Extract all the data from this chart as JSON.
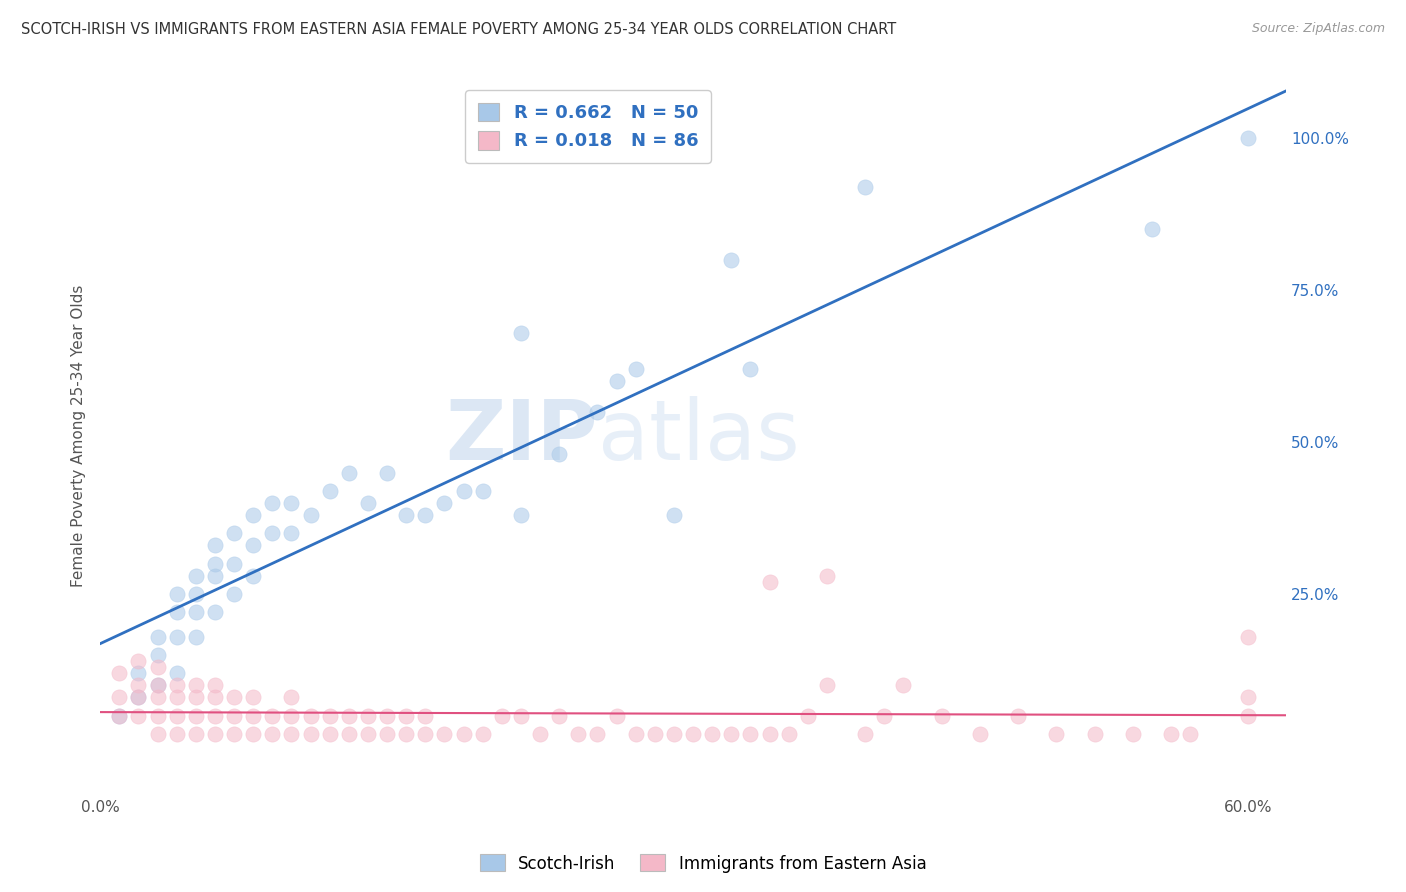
{
  "title": "SCOTCH-IRISH VS IMMIGRANTS FROM EASTERN ASIA FEMALE POVERTY AMONG 25-34 YEAR OLDS CORRELATION CHART",
  "source": "Source: ZipAtlas.com",
  "ylabel": "Female Poverty Among 25-34 Year Olds",
  "xlim": [
    0.0,
    0.62
  ],
  "ylim": [
    -0.08,
    1.1
  ],
  "blue_R": 0.662,
  "blue_N": 50,
  "pink_R": 0.018,
  "pink_N": 86,
  "blue_color": "#a8c8e8",
  "pink_color": "#f4b8c8",
  "blue_line_color": "#3070c0",
  "pink_line_color": "#e05080",
  "watermark_zip": "ZIP",
  "watermark_atlas": "atlas",
  "blue_scatter_x": [
    0.01,
    0.02,
    0.02,
    0.03,
    0.03,
    0.03,
    0.04,
    0.04,
    0.04,
    0.04,
    0.05,
    0.05,
    0.05,
    0.05,
    0.06,
    0.06,
    0.06,
    0.06,
    0.07,
    0.07,
    0.07,
    0.08,
    0.08,
    0.08,
    0.09,
    0.09,
    0.1,
    0.1,
    0.11,
    0.12,
    0.13,
    0.14,
    0.15,
    0.16,
    0.17,
    0.18,
    0.19,
    0.2,
    0.22,
    0.24,
    0.26,
    0.27,
    0.3,
    0.33,
    0.34,
    0.4,
    0.28,
    0.22,
    0.55,
    0.6
  ],
  "blue_scatter_y": [
    0.05,
    0.08,
    0.12,
    0.1,
    0.15,
    0.18,
    0.12,
    0.18,
    0.22,
    0.25,
    0.18,
    0.22,
    0.25,
    0.28,
    0.22,
    0.28,
    0.3,
    0.33,
    0.25,
    0.3,
    0.35,
    0.28,
    0.33,
    0.38,
    0.35,
    0.4,
    0.35,
    0.4,
    0.38,
    0.42,
    0.45,
    0.4,
    0.45,
    0.38,
    0.38,
    0.4,
    0.42,
    0.42,
    0.38,
    0.48,
    0.55,
    0.6,
    0.38,
    0.8,
    0.62,
    0.92,
    0.62,
    0.68,
    0.85,
    1.0
  ],
  "pink_scatter_x": [
    0.01,
    0.01,
    0.01,
    0.02,
    0.02,
    0.02,
    0.02,
    0.03,
    0.03,
    0.03,
    0.03,
    0.03,
    0.04,
    0.04,
    0.04,
    0.04,
    0.05,
    0.05,
    0.05,
    0.05,
    0.06,
    0.06,
    0.06,
    0.06,
    0.07,
    0.07,
    0.07,
    0.08,
    0.08,
    0.08,
    0.09,
    0.09,
    0.1,
    0.1,
    0.1,
    0.11,
    0.11,
    0.12,
    0.12,
    0.13,
    0.13,
    0.14,
    0.14,
    0.15,
    0.15,
    0.16,
    0.16,
    0.17,
    0.17,
    0.18,
    0.19,
    0.2,
    0.21,
    0.22,
    0.23,
    0.24,
    0.25,
    0.26,
    0.27,
    0.28,
    0.29,
    0.3,
    0.31,
    0.32,
    0.33,
    0.34,
    0.35,
    0.36,
    0.37,
    0.38,
    0.4,
    0.41,
    0.42,
    0.44,
    0.46,
    0.48,
    0.5,
    0.52,
    0.54,
    0.56,
    0.57,
    0.35,
    0.38,
    0.6,
    0.6,
    0.6
  ],
  "pink_scatter_y": [
    0.05,
    0.08,
    0.12,
    0.05,
    0.08,
    0.1,
    0.14,
    0.02,
    0.05,
    0.08,
    0.1,
    0.13,
    0.02,
    0.05,
    0.08,
    0.1,
    0.02,
    0.05,
    0.08,
    0.1,
    0.02,
    0.05,
    0.08,
    0.1,
    0.02,
    0.05,
    0.08,
    0.02,
    0.05,
    0.08,
    0.02,
    0.05,
    0.02,
    0.05,
    0.08,
    0.02,
    0.05,
    0.02,
    0.05,
    0.02,
    0.05,
    0.02,
    0.05,
    0.02,
    0.05,
    0.02,
    0.05,
    0.02,
    0.05,
    0.02,
    0.02,
    0.02,
    0.05,
    0.05,
    0.02,
    0.05,
    0.02,
    0.02,
    0.05,
    0.02,
    0.02,
    0.02,
    0.02,
    0.02,
    0.02,
    0.02,
    0.02,
    0.02,
    0.05,
    0.1,
    0.02,
    0.05,
    0.1,
    0.05,
    0.02,
    0.05,
    0.02,
    0.02,
    0.02,
    0.02,
    0.02,
    0.27,
    0.28,
    0.18,
    0.08,
    0.05
  ]
}
